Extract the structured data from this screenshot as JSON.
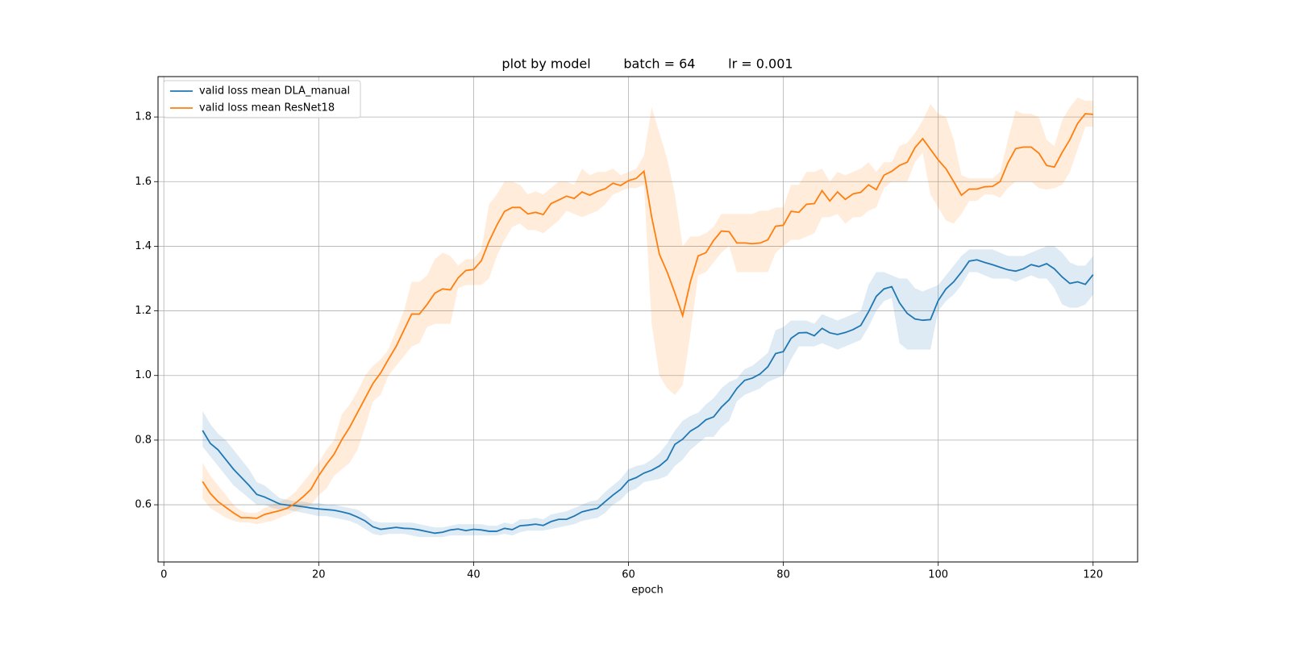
{
  "chart_data": {
    "type": "line",
    "title": "plot by model        batch = 64        lr = 0.001",
    "xlabel": "epoch",
    "x": [
      5,
      6,
      7,
      8,
      9,
      10,
      11,
      12,
      13,
      14,
      15,
      16,
      17,
      18,
      19,
      20,
      21,
      22,
      23,
      24,
      25,
      26,
      27,
      28,
      29,
      30,
      31,
      32,
      33,
      34,
      35,
      36,
      37,
      38,
      39,
      40,
      41,
      42,
      43,
      44,
      45,
      46,
      47,
      48,
      49,
      50,
      51,
      52,
      53,
      54,
      55,
      56,
      57,
      58,
      59,
      60,
      61,
      62,
      63,
      64,
      65,
      66,
      67,
      68,
      69,
      70,
      71,
      72,
      73,
      74,
      75,
      76,
      77,
      78,
      79,
      80,
      81,
      82,
      83,
      84,
      85,
      86,
      87,
      88,
      89,
      90,
      91,
      92,
      93,
      94,
      95,
      96,
      97,
      98,
      99,
      100,
      101,
      102,
      103,
      104,
      105,
      106,
      107,
      108,
      109,
      110,
      111,
      112,
      113,
      114,
      115,
      116,
      117,
      118,
      119,
      120
    ],
    "series": [
      {
        "name": "valid loss mean DLA_manual",
        "color": "#1f77b4",
        "values": [
          0.83,
          0.79,
          0.77,
          0.74,
          0.71,
          0.685,
          0.66,
          0.632,
          0.624,
          0.613,
          0.602,
          0.599,
          0.597,
          0.594,
          0.59,
          0.587,
          0.585,
          0.583,
          0.578,
          0.572,
          0.562,
          0.55,
          0.532,
          0.524,
          0.527,
          0.53,
          0.527,
          0.526,
          0.522,
          0.517,
          0.512,
          0.515,
          0.522,
          0.525,
          0.52,
          0.524,
          0.522,
          0.518,
          0.518,
          0.527,
          0.523,
          0.535,
          0.537,
          0.54,
          0.536,
          0.548,
          0.555,
          0.555,
          0.565,
          0.578,
          0.584,
          0.589,
          0.61,
          0.63,
          0.648,
          0.675,
          0.684,
          0.698,
          0.707,
          0.72,
          0.74,
          0.787,
          0.803,
          0.828,
          0.842,
          0.863,
          0.872,
          0.902,
          0.925,
          0.96,
          0.985,
          0.992,
          1.005,
          1.027,
          1.068,
          1.074,
          1.115,
          1.132,
          1.133,
          1.123,
          1.146,
          1.132,
          1.127,
          1.133,
          1.142,
          1.155,
          1.197,
          1.245,
          1.268,
          1.275,
          1.225,
          1.192,
          1.175,
          1.171,
          1.173,
          1.232,
          1.268,
          1.29,
          1.32,
          1.354,
          1.358,
          1.35,
          1.343,
          1.335,
          1.327,
          1.323,
          1.33,
          1.343,
          1.337,
          1.346,
          1.33,
          1.305,
          1.285,
          1.29,
          1.282,
          1.312
        ],
        "lower": [
          0.78,
          0.75,
          0.72,
          0.69,
          0.66,
          0.64,
          0.62,
          0.6,
          0.6,
          0.59,
          0.585,
          0.585,
          0.58,
          0.575,
          0.57,
          0.565,
          0.565,
          0.56,
          0.555,
          0.55,
          0.54,
          0.525,
          0.51,
          0.505,
          0.51,
          0.51,
          0.51,
          0.505,
          0.5,
          0.5,
          0.5,
          0.5,
          0.505,
          0.505,
          0.505,
          0.505,
          0.505,
          0.505,
          0.505,
          0.51,
          0.505,
          0.515,
          0.52,
          0.52,
          0.52,
          0.525,
          0.53,
          0.535,
          0.54,
          0.55,
          0.555,
          0.56,
          0.575,
          0.6,
          0.615,
          0.64,
          0.65,
          0.67,
          0.675,
          0.68,
          0.69,
          0.72,
          0.74,
          0.77,
          0.79,
          0.81,
          0.81,
          0.84,
          0.86,
          0.92,
          0.94,
          0.95,
          0.96,
          0.98,
          0.99,
          1.0,
          1.05,
          1.09,
          1.09,
          1.09,
          1.1,
          1.09,
          1.08,
          1.09,
          1.1,
          1.11,
          1.15,
          1.2,
          1.23,
          1.24,
          1.1,
          1.08,
          1.08,
          1.08,
          1.08,
          1.2,
          1.23,
          1.25,
          1.28,
          1.32,
          1.32,
          1.31,
          1.3,
          1.3,
          1.3,
          1.29,
          1.3,
          1.31,
          1.3,
          1.3,
          1.27,
          1.22,
          1.21,
          1.21,
          1.22,
          1.25
        ],
        "upper": [
          0.89,
          0.85,
          0.82,
          0.8,
          0.77,
          0.74,
          0.71,
          0.67,
          0.66,
          0.64,
          0.62,
          0.615,
          0.61,
          0.61,
          0.605,
          0.605,
          0.6,
          0.6,
          0.595,
          0.59,
          0.585,
          0.57,
          0.55,
          0.545,
          0.545,
          0.545,
          0.545,
          0.545,
          0.54,
          0.535,
          0.53,
          0.53,
          0.535,
          0.54,
          0.54,
          0.54,
          0.54,
          0.535,
          0.535,
          0.545,
          0.54,
          0.555,
          0.555,
          0.56,
          0.555,
          0.57,
          0.575,
          0.58,
          0.59,
          0.6,
          0.61,
          0.615,
          0.64,
          0.66,
          0.68,
          0.71,
          0.72,
          0.725,
          0.74,
          0.76,
          0.79,
          0.83,
          0.86,
          0.875,
          0.885,
          0.91,
          0.93,
          0.96,
          0.98,
          0.99,
          1.02,
          1.03,
          1.05,
          1.07,
          1.14,
          1.15,
          1.17,
          1.17,
          1.17,
          1.16,
          1.19,
          1.18,
          1.17,
          1.18,
          1.19,
          1.2,
          1.28,
          1.32,
          1.32,
          1.31,
          1.3,
          1.3,
          1.27,
          1.26,
          1.27,
          1.28,
          1.31,
          1.34,
          1.37,
          1.39,
          1.39,
          1.39,
          1.39,
          1.38,
          1.37,
          1.37,
          1.37,
          1.38,
          1.39,
          1.4,
          1.4,
          1.38,
          1.35,
          1.34,
          1.34,
          1.37
        ]
      },
      {
        "name": "valid loss mean ResNet18",
        "color": "#ff7f0e",
        "values": [
          0.672,
          0.635,
          0.61,
          0.592,
          0.575,
          0.56,
          0.56,
          0.558,
          0.57,
          0.576,
          0.582,
          0.59,
          0.605,
          0.625,
          0.648,
          0.69,
          0.725,
          0.757,
          0.802,
          0.84,
          0.885,
          0.93,
          0.975,
          1.008,
          1.05,
          1.09,
          1.14,
          1.19,
          1.19,
          1.22,
          1.255,
          1.268,
          1.265,
          1.302,
          1.325,
          1.328,
          1.355,
          1.415,
          1.465,
          1.508,
          1.52,
          1.52,
          1.5,
          1.505,
          1.498,
          1.532,
          1.543,
          1.555,
          1.548,
          1.568,
          1.558,
          1.57,
          1.578,
          1.595,
          1.588,
          1.603,
          1.61,
          1.632,
          1.49,
          1.375,
          1.32,
          1.255,
          1.185,
          1.29,
          1.37,
          1.38,
          1.418,
          1.447,
          1.445,
          1.41,
          1.41,
          1.408,
          1.41,
          1.42,
          1.462,
          1.465,
          1.508,
          1.505,
          1.53,
          1.532,
          1.572,
          1.54,
          1.568,
          1.545,
          1.562,
          1.567,
          1.59,
          1.575,
          1.62,
          1.632,
          1.65,
          1.66,
          1.705,
          1.733,
          1.7,
          1.667,
          1.64,
          1.6,
          1.558,
          1.577,
          1.577,
          1.584,
          1.585,
          1.6,
          1.658,
          1.702,
          1.707,
          1.707,
          1.688,
          1.65,
          1.645,
          1.69,
          1.73,
          1.78,
          1.81,
          1.808
        ],
        "lower": [
          0.62,
          0.59,
          0.575,
          0.56,
          0.55,
          0.545,
          0.545,
          0.54,
          0.545,
          0.55,
          0.56,
          0.57,
          0.58,
          0.59,
          0.6,
          0.63,
          0.65,
          0.69,
          0.71,
          0.73,
          0.77,
          0.84,
          0.92,
          0.94,
          1.0,
          1.03,
          1.06,
          1.09,
          1.1,
          1.15,
          1.16,
          1.16,
          1.16,
          1.27,
          1.28,
          1.28,
          1.28,
          1.3,
          1.37,
          1.42,
          1.46,
          1.47,
          1.45,
          1.45,
          1.44,
          1.46,
          1.48,
          1.51,
          1.5,
          1.49,
          1.5,
          1.51,
          1.53,
          1.56,
          1.57,
          1.58,
          1.58,
          1.59,
          1.16,
          1.0,
          0.96,
          0.94,
          0.97,
          1.13,
          1.31,
          1.32,
          1.35,
          1.38,
          1.4,
          1.32,
          1.32,
          1.32,
          1.32,
          1.32,
          1.38,
          1.4,
          1.42,
          1.42,
          1.43,
          1.44,
          1.49,
          1.49,
          1.5,
          1.47,
          1.49,
          1.49,
          1.51,
          1.52,
          1.58,
          1.6,
          1.6,
          1.6,
          1.66,
          1.69,
          1.56,
          1.52,
          1.48,
          1.47,
          1.5,
          1.54,
          1.54,
          1.56,
          1.56,
          1.55,
          1.58,
          1.6,
          1.6,
          1.6,
          1.58,
          1.575,
          1.58,
          1.59,
          1.63,
          1.7,
          1.77,
          1.77
        ],
        "upper": [
          0.73,
          0.69,
          0.66,
          0.63,
          0.6,
          0.58,
          0.575,
          0.575,
          0.59,
          0.6,
          0.61,
          0.62,
          0.64,
          0.67,
          0.7,
          0.73,
          0.77,
          0.8,
          0.88,
          0.91,
          0.95,
          1.0,
          1.03,
          1.05,
          1.08,
          1.14,
          1.2,
          1.29,
          1.29,
          1.31,
          1.36,
          1.38,
          1.37,
          1.34,
          1.36,
          1.36,
          1.39,
          1.53,
          1.56,
          1.6,
          1.6,
          1.59,
          1.56,
          1.57,
          1.56,
          1.58,
          1.6,
          1.6,
          1.59,
          1.64,
          1.62,
          1.63,
          1.63,
          1.64,
          1.62,
          1.63,
          1.64,
          1.68,
          1.83,
          1.75,
          1.67,
          1.56,
          1.4,
          1.43,
          1.43,
          1.44,
          1.46,
          1.5,
          1.5,
          1.5,
          1.5,
          1.5,
          1.51,
          1.51,
          1.52,
          1.52,
          1.59,
          1.59,
          1.63,
          1.63,
          1.64,
          1.6,
          1.63,
          1.62,
          1.63,
          1.64,
          1.66,
          1.63,
          1.66,
          1.66,
          1.71,
          1.72,
          1.75,
          1.79,
          1.84,
          1.81,
          1.8,
          1.73,
          1.62,
          1.61,
          1.61,
          1.61,
          1.61,
          1.63,
          1.73,
          1.82,
          1.81,
          1.81,
          1.8,
          1.73,
          1.71,
          1.79,
          1.83,
          1.86,
          1.85,
          1.85
        ]
      }
    ],
    "xlim": [
      -0.75,
      125.75
    ],
    "ylim": [
      0.423,
      1.925
    ],
    "xticks": [
      0,
      20,
      40,
      60,
      80,
      100,
      120
    ],
    "yticks": [
      0.6,
      0.8,
      {
        "value": 1,
        "label": "1.0"
      },
      1.2,
      1.4,
      1.6,
      1.8
    ],
    "grid": true,
    "legend": "upper left"
  }
}
